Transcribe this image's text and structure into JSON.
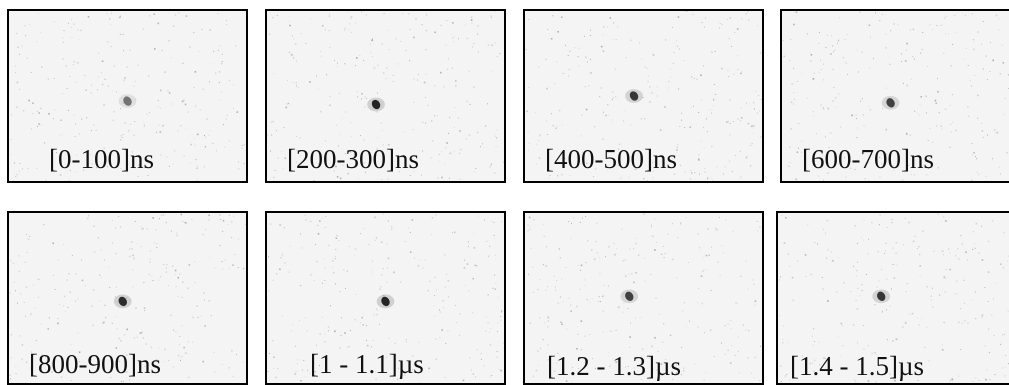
{
  "panels": [
    {
      "label": "[0-100]ns"
    },
    {
      "label": "[200-300]ns"
    },
    {
      "label": "[400-500]ns"
    },
    {
      "label": "[600-700]ns"
    },
    {
      "label": "[800-900]ns"
    },
    {
      "label": "[1 - 1.1]µs"
    },
    {
      "label": "[1.2 - 1.3]µs"
    },
    {
      "label": "[1.4 - 1.5]µs"
    }
  ],
  "colors": {
    "frame_border": "#000000",
    "background": "#f4f4f4",
    "spot": "#1a1a1a",
    "noise": "#9a9a9a"
  }
}
